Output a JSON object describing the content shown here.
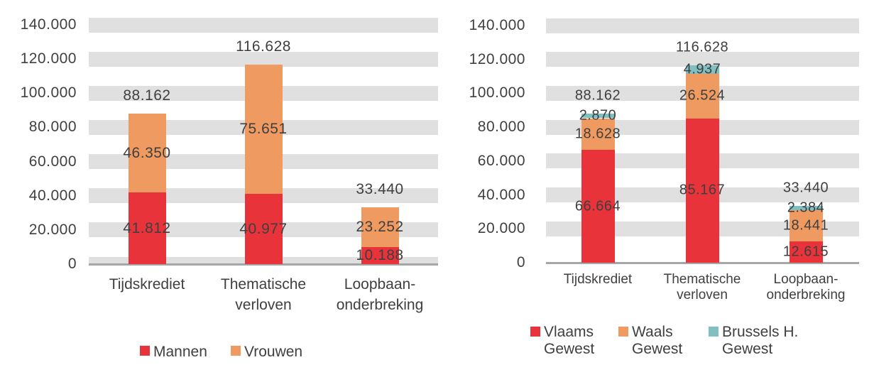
{
  "page": {
    "background": "#FFFFFF",
    "text_color": "#3F3F3F",
    "axis_line_color": "#A6A6A6",
    "gridband_color": "#E0E0E0"
  },
  "chart_data": [
    {
      "type": "bar",
      "stacked": true,
      "title": "",
      "xlabel": "",
      "ylabel": "",
      "categories": [
        "Tijdskrediet",
        "Thematische verloven",
        "Loopbaan-onderbreking"
      ],
      "category_label_lines": [
        [
          "Tijdskrediet"
        ],
        [
          "Thematische",
          "verloven"
        ],
        [
          "Loopbaan-",
          "onderbreking"
        ]
      ],
      "series": [
        {
          "name": "Mannen",
          "name_lines": [
            "Mannen"
          ],
          "color": "#E8333A",
          "values": [
            41812,
            40977,
            10188
          ],
          "value_labels": [
            "41.812",
            "40.977",
            "10.188"
          ]
        },
        {
          "name": "Vrouwen",
          "name_lines": [
            "Vrouwen"
          ],
          "color": "#EF9A60",
          "values": [
            46350,
            75651,
            23252
          ],
          "value_labels": [
            "46.350",
            "75.651",
            "23.252"
          ]
        }
      ],
      "totals": [
        88162,
        116628,
        33440
      ],
      "total_labels": [
        "88.162",
        "116.628",
        "33.440"
      ],
      "ylim": [
        0,
        140000
      ],
      "ytick_interval": 20000,
      "ytick_values": [
        0,
        20000,
        40000,
        60000,
        80000,
        100000,
        120000,
        140000
      ],
      "ytick_labels": [
        "0",
        "20.000",
        "40.000",
        "60.000",
        "80.000",
        "100.000",
        "120.000",
        "140.000"
      ],
      "grid": "horizontal-bands",
      "legend_position": "bottom"
    },
    {
      "type": "bar",
      "stacked": true,
      "title": "",
      "xlabel": "",
      "ylabel": "",
      "categories": [
        "Tijdskrediet",
        "Thematische verloven",
        "Loopbaan-onderbreking"
      ],
      "category_label_lines": [
        [
          "Tijdskrediet"
        ],
        [
          "Thematische",
          "verloven"
        ],
        [
          "Loopbaan-",
          "onderbreking"
        ]
      ],
      "series": [
        {
          "name": "Vlaams Gewest",
          "name_lines": [
            "Vlaams",
            "Gewest"
          ],
          "color": "#E8333A",
          "values": [
            66664,
            85167,
            12615
          ],
          "value_labels": [
            "66.664",
            "85.167",
            "12.615"
          ]
        },
        {
          "name": "Waals Gewest",
          "name_lines": [
            "Waals",
            "Gewest"
          ],
          "color": "#EF9A60",
          "values": [
            18628,
            26524,
            18441
          ],
          "value_labels": [
            "18.628",
            "26.524",
            "18.441"
          ]
        },
        {
          "name": "Brussels H. Gewest",
          "name_lines": [
            "Brussels H.",
            "Gewest"
          ],
          "color": "#82BFC0",
          "values": [
            2870,
            4937,
            2384
          ],
          "value_labels": [
            "2.870",
            "4.937",
            "2.384"
          ]
        }
      ],
      "totals": [
        88162,
        116628,
        33440
      ],
      "total_labels": [
        "88.162",
        "116.628",
        "33.440"
      ],
      "ylim": [
        0,
        140000
      ],
      "ytick_interval": 20000,
      "ytick_values": [
        0,
        20000,
        40000,
        60000,
        80000,
        100000,
        120000,
        140000
      ],
      "ytick_labels": [
        "0",
        "20.000",
        "40.000",
        "60.000",
        "80.000",
        "100.000",
        "120.000",
        "140.000"
      ],
      "grid": "horizontal-bands",
      "legend_position": "bottom"
    }
  ]
}
